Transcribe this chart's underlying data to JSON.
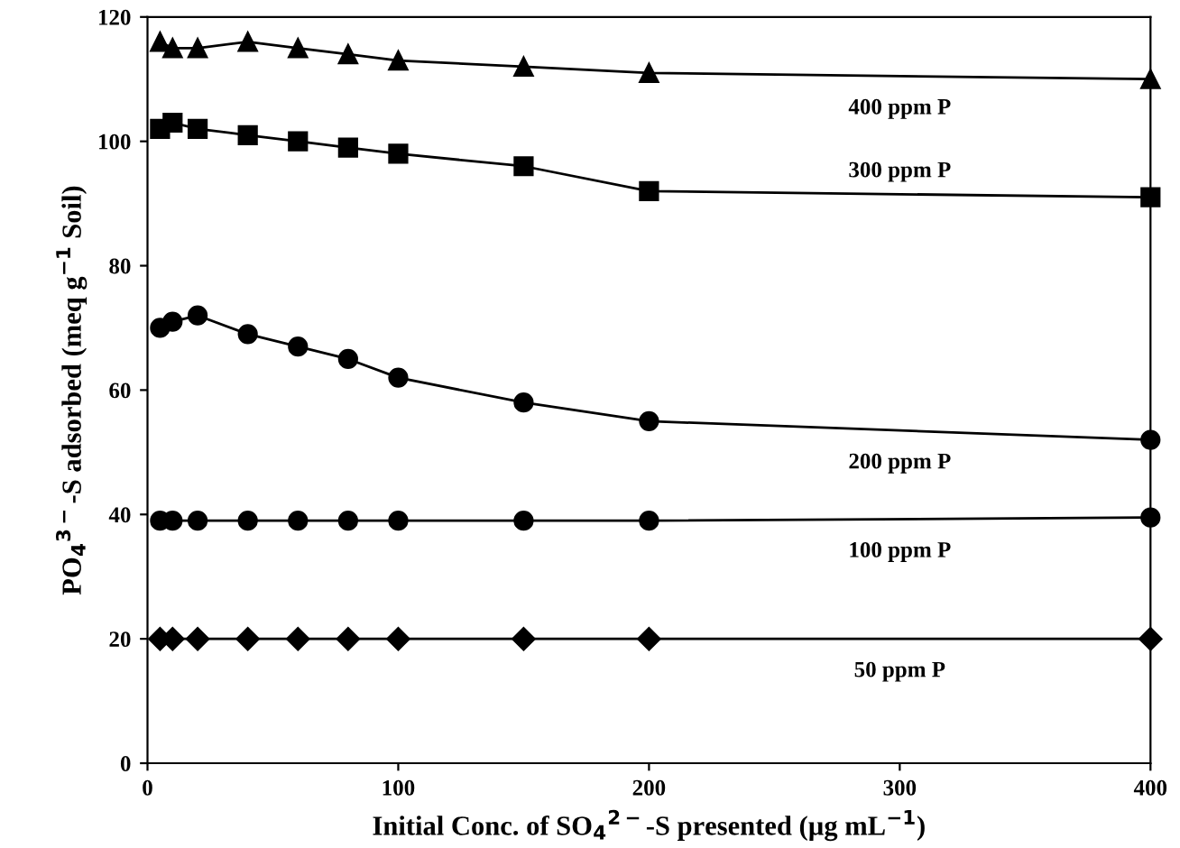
{
  "chart_data": {
    "type": "line",
    "xlabel": "Initial Conc. of SO$_{4}$$^{2−}$-S presented (µg mL$^{−1}$)",
    "ylabel": "PO$_{4}$$^{3−}$-S adsorbed (meq g$^{−1}$ Soil)",
    "x": [
      5,
      10,
      20,
      40,
      60,
      80,
      100,
      150,
      200,
      400
    ],
    "series": [
      {
        "name": "400 ppm P",
        "color": "#000000",
        "marker": "triangle",
        "values": [
          116,
          115,
          115,
          116,
          115,
          114,
          113,
          112,
          111,
          110
        ]
      },
      {
        "name": "300 ppm P",
        "color": "#000000",
        "marker": "square",
        "values": [
          102,
          103,
          102,
          101,
          100,
          99,
          98,
          96,
          92,
          91
        ]
      },
      {
        "name": "200 ppm P",
        "color": "#000000",
        "marker": "circle",
        "values": [
          70,
          71,
          72,
          69,
          67,
          65,
          62,
          58,
          55,
          52
        ]
      },
      {
        "name": "100 ppm P",
        "color": "#000000",
        "marker": "circle",
        "values": [
          39,
          39,
          39,
          39,
          39,
          39,
          39,
          39,
          39,
          39.5
        ]
      },
      {
        "name": "50 ppm P",
        "color": "#000000",
        "marker": "diamond",
        "values": [
          20,
          20,
          20,
          20,
          20,
          20,
          20,
          20,
          20,
          20
        ]
      }
    ],
    "xlim": [
      0,
      400
    ],
    "xticks": [
      0,
      100,
      200,
      300,
      400
    ],
    "ylim": [
      0,
      120
    ],
    "yticks": [
      0,
      20,
      40,
      60,
      80,
      100,
      120
    ],
    "grid": false,
    "legend": false,
    "line_style": "solid"
  }
}
